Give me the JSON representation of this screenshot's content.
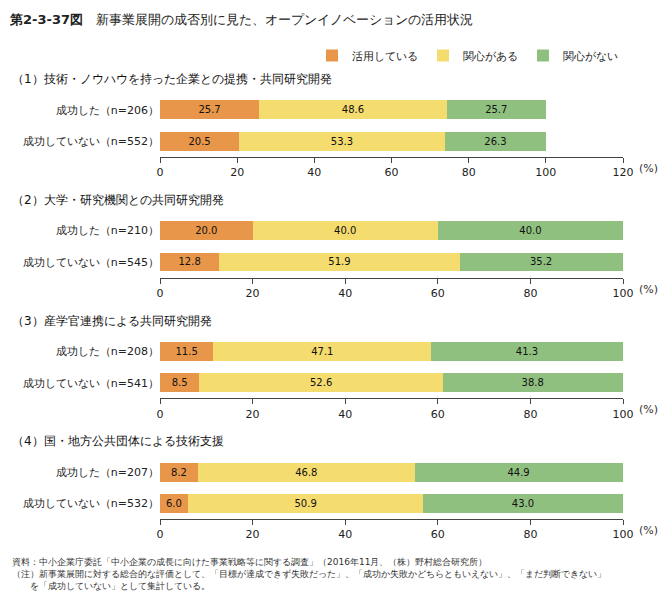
{
  "title": "第2-3-37図",
  "subtitle": "新事業展開の成否別に見た、オープンイノベーションの活用状況",
  "annotations": [
    "資料：中小企業庁委託「中小企業の成長に向けた事業戦略等に関する調査」（2016年11月、（株）野村総合研究所）",
    "（注）新事業展開に対する総合的な評価として、「目標が達成できず失敗だった」、「成功か失敗かどちらともいえない」、「まだ判断できない」",
    "　　を「成功していない」として集計している。"
  ],
  "chart_data": [
    {
      "type": "bar",
      "title": "（1）技術・ノウハウを持った企業との提携・共同研究開発",
      "orientation": "horizontal",
      "stacked": true,
      "data_labels": true,
      "grid": false,
      "legend": "top",
      "categories": [
        "成功した（n=206）",
        "成功していない（n=552）"
      ],
      "series": [
        {
          "name": "活用している",
          "color": "#E8974A",
          "values": [
            25.7,
            20.5
          ],
          "value_labels": [
            "25.7",
            "20.5"
          ]
        },
        {
          "name": "関心がある",
          "color": "#F5DC6E",
          "values": [
            48.6,
            53.3
          ],
          "value_labels": [
            "48.6",
            "53.3"
          ]
        },
        {
          "name": "関心がない",
          "color": "#90C080",
          "values": [
            25.7,
            26.3
          ],
          "value_labels": [
            "25.7",
            "26.3"
          ]
        }
      ],
      "xlim": [
        0,
        120
      ],
      "xticks": [
        0,
        20,
        40,
        60,
        80,
        100,
        120
      ],
      "xlabel": "(%)"
    },
    {
      "type": "bar",
      "title": "（2）大学・研究機関との共同研究開発",
      "orientation": "horizontal",
      "stacked": true,
      "data_labels": true,
      "grid": false,
      "categories": [
        "成功した（n=210）",
        "成功していない（n=545）"
      ],
      "series": [
        {
          "name": "活用している",
          "color": "#E8974A",
          "values": [
            20.0,
            12.8
          ],
          "value_labels": [
            "20.0",
            "12.8"
          ]
        },
        {
          "name": "関心がある",
          "color": "#F5DC6E",
          "values": [
            40.0,
            51.9
          ],
          "value_labels": [
            "40.0",
            "51.9"
          ]
        },
        {
          "name": "関心がない",
          "color": "#90C080",
          "values": [
            40.0,
            35.2
          ],
          "value_labels": [
            "40.0",
            "35.2"
          ]
        }
      ],
      "xlim": [
        0,
        100
      ],
      "xticks": [
        0,
        20,
        40,
        60,
        80,
        100
      ],
      "xlabel": "(%)"
    },
    {
      "type": "bar",
      "title": "（3）産学官連携による共同研究開発",
      "orientation": "horizontal",
      "stacked": true,
      "data_labels": true,
      "grid": false,
      "categories": [
        "成功した（n=208）",
        "成功していない（n=541）"
      ],
      "series": [
        {
          "name": "活用している",
          "color": "#E8974A",
          "values": [
            11.5,
            8.5
          ],
          "value_labels": [
            "11.5",
            "8.5"
          ]
        },
        {
          "name": "関心がある",
          "color": "#F5DC6E",
          "values": [
            47.1,
            52.6
          ],
          "value_labels": [
            "47.1",
            "52.6"
          ]
        },
        {
          "name": "関心がない",
          "color": "#90C080",
          "values": [
            41.3,
            38.8
          ],
          "value_labels": [
            "41.3",
            "38.8"
          ]
        }
      ],
      "xlim": [
        0,
        100
      ],
      "xticks": [
        0,
        20,
        40,
        60,
        80,
        100
      ],
      "xlabel": "(%)"
    },
    {
      "type": "bar",
      "title": "（4）国・地方公共団体による技術支援",
      "orientation": "horizontal",
      "stacked": true,
      "data_labels": true,
      "grid": false,
      "categories": [
        "成功した（n=207）",
        "成功していない（n=532）"
      ],
      "series": [
        {
          "name": "活用している",
          "color": "#E8974A",
          "values": [
            8.2,
            6.0
          ],
          "value_labels": [
            "8.2",
            "6.0"
          ]
        },
        {
          "name": "関心がある",
          "color": "#F5DC6E",
          "values": [
            46.8,
            50.9
          ],
          "value_labels": [
            "46.8",
            "50.9"
          ]
        },
        {
          "name": "関心がない",
          "color": "#90C080",
          "values": [
            44.9,
            43.0
          ],
          "value_labels": [
            "44.9",
            "43.0"
          ]
        }
      ],
      "xlim": [
        0,
        100
      ],
      "xticks": [
        0,
        20,
        40,
        60,
        80,
        100
      ],
      "xlabel": "(%)"
    }
  ]
}
